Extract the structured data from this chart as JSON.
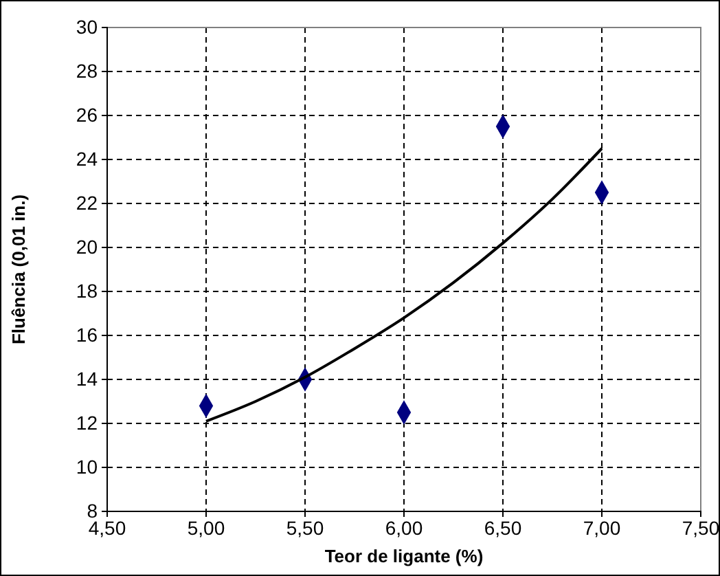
{
  "chart_data": {
    "type": "scatter",
    "xlabel": "Teor de ligante (%)",
    "ylabel": "Fluência (0,01 in.)",
    "xlim": [
      4.5,
      7.5
    ],
    "xticks": [
      {
        "value": 4.5,
        "label": "4,50"
      },
      {
        "value": 5,
        "label": "5,00"
      },
      {
        "value": 5.5,
        "label": "5,50"
      },
      {
        "value": 6,
        "label": "6,00"
      },
      {
        "value": 6.5,
        "label": "6,50"
      },
      {
        "value": 7,
        "label": "7,00"
      },
      {
        "value": 7.5,
        "label": "7,50"
      }
    ],
    "ylim": [
      8,
      30
    ],
    "yticks": [
      8,
      10,
      12,
      14,
      16,
      18,
      20,
      22,
      24,
      26,
      28,
      30
    ],
    "grid": true,
    "series": [
      {
        "marker": "diamond",
        "color": "#000080",
        "x": [
          5,
          5.5,
          6,
          6.5,
          7
        ],
        "values": [
          12.8,
          14,
          12.5,
          25.5,
          22.5
        ]
      },
      {
        "type": "line",
        "marker": "none",
        "line_style": "solid",
        "color": "#000000",
        "x": [
          5,
          5.25,
          5.5,
          5.75,
          6,
          6.25,
          6.5,
          6.75,
          7
        ],
        "values": [
          12.1,
          13,
          14.1,
          15.4,
          16.8,
          18.4,
          20.2,
          22.2,
          24.5
        ]
      }
    ]
  }
}
